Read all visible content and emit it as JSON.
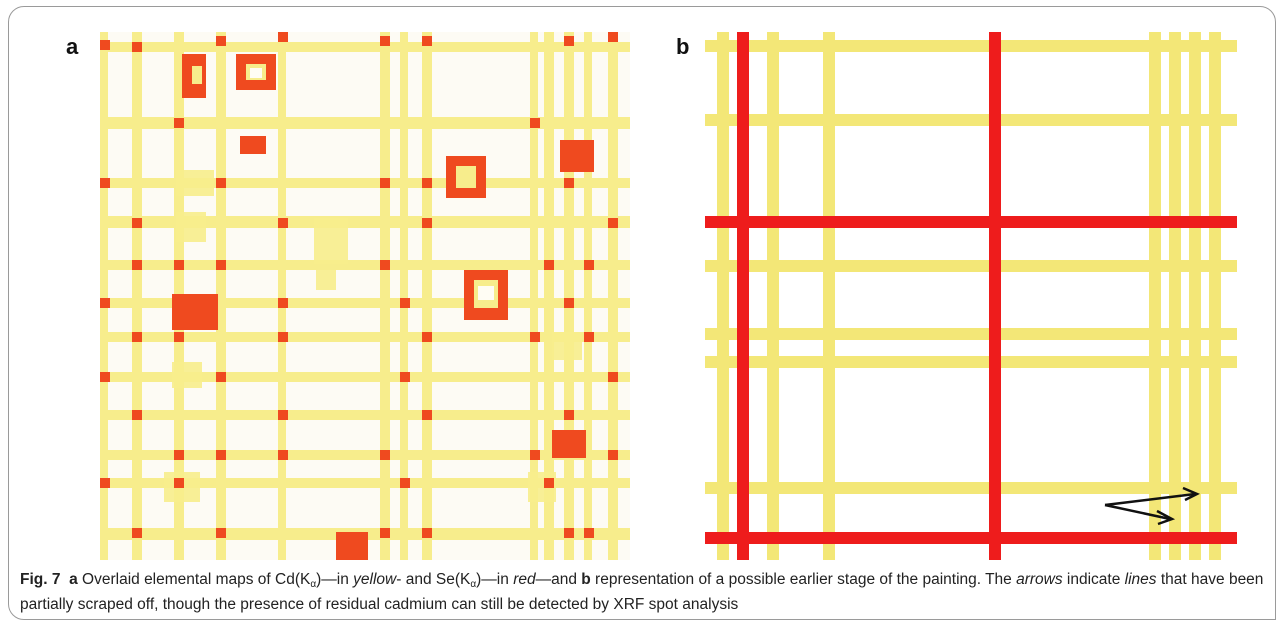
{
  "figure": {
    "panel_a_letter": "a",
    "panel_b_letter": "b",
    "caption": {
      "fig_label": "Fig. 7",
      "part_a": "a",
      "t1": " Overlaid elemental maps of Cd(K",
      "alpha": "α",
      "t2": ")—in ",
      "yellow": "yellow",
      "t3": "- and Se(K",
      "t4": ")—in ",
      "red": "red",
      "t5": "—and ",
      "part_b": "b",
      "t6": " representation of a possible earlier stage of the painting. The ",
      "arrows": "arrows",
      "t7": " indicate ",
      "lines": "lines",
      "t8": " that have been partially scraped off, though the presence of residual cadmium can still be detected by XRF spot analysis"
    }
  },
  "colors": {
    "cd_yellow": "#f7ed8c",
    "se_red": "#ef4a1f",
    "schematic_yellow": "#f3e777",
    "schematic_red": "#ee1c1c",
    "arrow": "#111111"
  },
  "icons": [
    "arrow-icon"
  ]
}
